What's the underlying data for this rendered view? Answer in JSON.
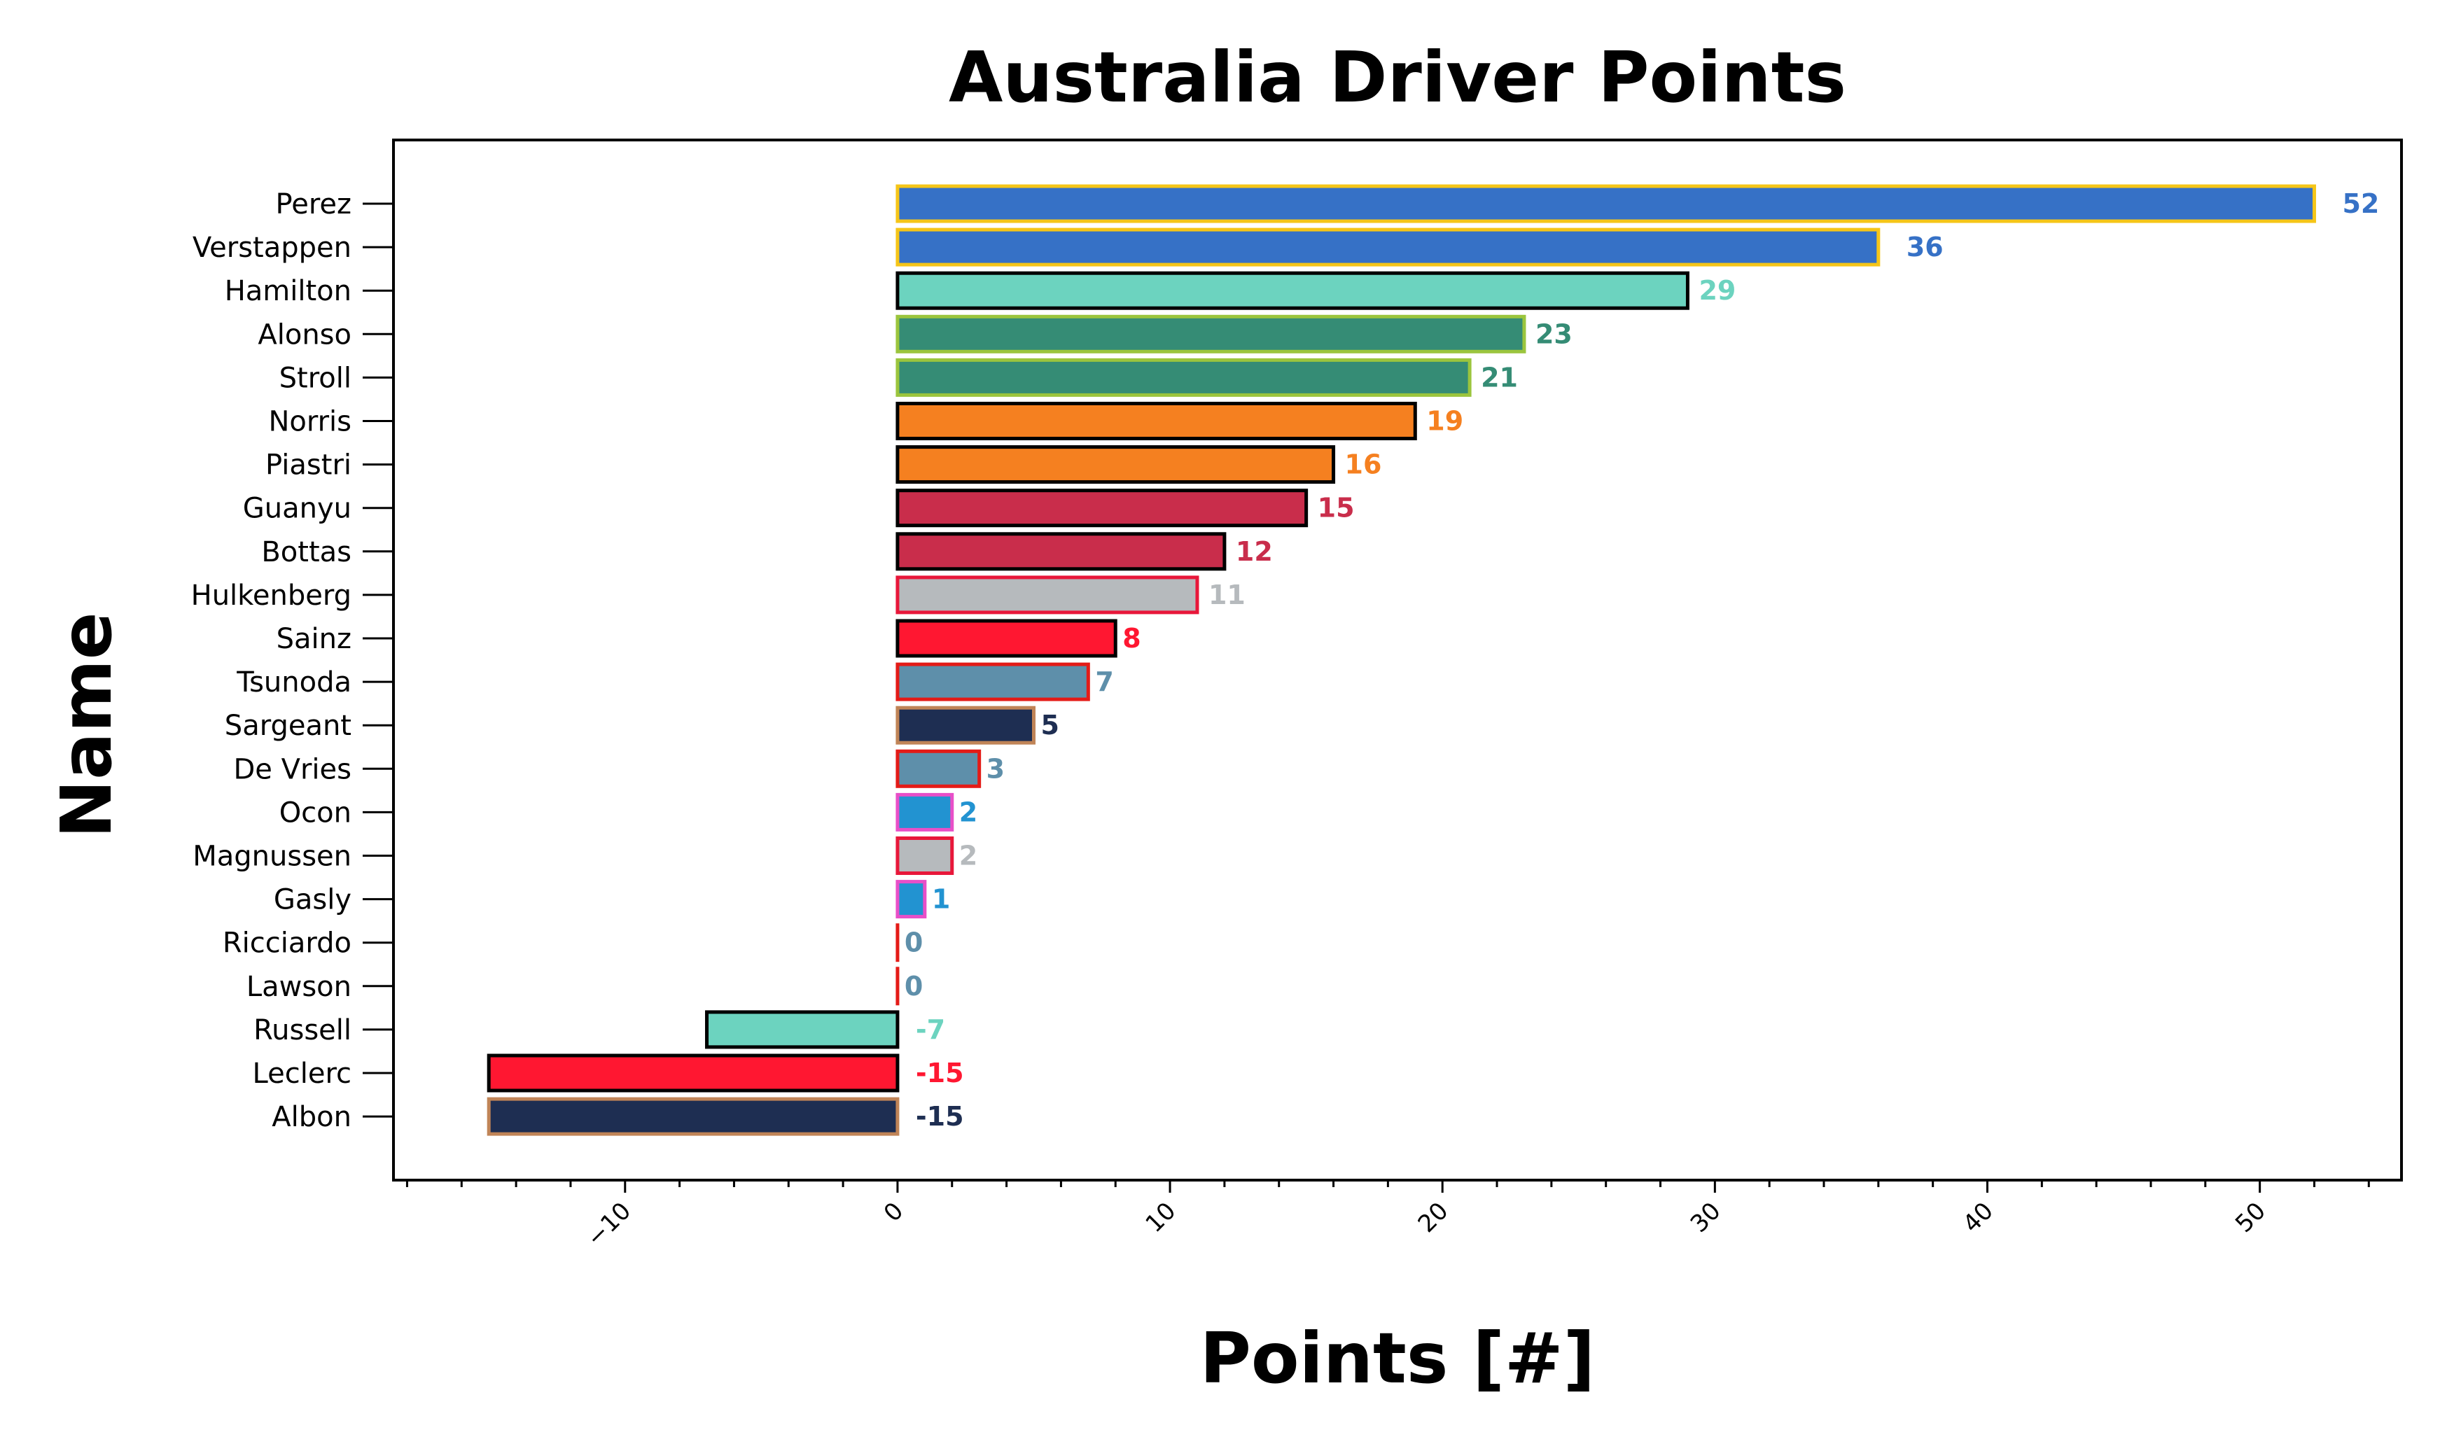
{
  "chart_data": {
    "type": "bar",
    "orientation": "horizontal",
    "title": "Australia Driver Points",
    "xlabel": "Points [#]",
    "ylabel": "Name",
    "xlim": [
      -18.5,
      55.2
    ],
    "xticks": [
      -10,
      0,
      10,
      20,
      30,
      40,
      50
    ],
    "xtick_labels": [
      "−10",
      "0",
      "10",
      "20",
      "30",
      "40",
      "50"
    ],
    "grid": false,
    "bars": [
      {
        "name": "Perez",
        "value": 52,
        "label": "52",
        "fill": "#3671C6",
        "edge": "#F5C518"
      },
      {
        "name": "Verstappen",
        "value": 36,
        "label": "36",
        "fill": "#3671C6",
        "edge": "#F5C518"
      },
      {
        "name": "Hamilton",
        "value": 29,
        "label": "29",
        "fill": "#6CD3BF",
        "edge": "#000000"
      },
      {
        "name": "Alonso",
        "value": 23,
        "label": "23",
        "fill": "#358C75",
        "edge": "#9BC53D"
      },
      {
        "name": "Stroll",
        "value": 21,
        "label": "21",
        "fill": "#358C75",
        "edge": "#9BC53D"
      },
      {
        "name": "Norris",
        "value": 19,
        "label": "19",
        "fill": "#F58020",
        "edge": "#000000"
      },
      {
        "name": "Piastri",
        "value": 16,
        "label": "16",
        "fill": "#F58020",
        "edge": "#000000"
      },
      {
        "name": "Guanyu",
        "value": 15,
        "label": "15",
        "fill": "#C92D4B",
        "edge": "#000000"
      },
      {
        "name": "Bottas",
        "value": 12,
        "label": "12",
        "fill": "#C92D4B",
        "edge": "#000000"
      },
      {
        "name": "Hulkenberg",
        "value": 11,
        "label": "11",
        "fill": "#B6BABD",
        "edge": "#E8173A"
      },
      {
        "name": "Sainz",
        "value": 8,
        "label": "8",
        "fill": "#FF1731",
        "edge": "#000000"
      },
      {
        "name": "Tsunoda",
        "value": 7,
        "label": "7",
        "fill": "#5E8FAA",
        "edge": "#E41B17"
      },
      {
        "name": "Sargeant",
        "value": 5,
        "label": "5",
        "fill": "#1E2E52",
        "edge": "#C08457"
      },
      {
        "name": "De Vries",
        "value": 3,
        "label": "3",
        "fill": "#5E8FAA",
        "edge": "#E41B17"
      },
      {
        "name": "Ocon",
        "value": 2,
        "label": "2",
        "fill": "#2293D1",
        "edge": "#E84FC8"
      },
      {
        "name": "Magnussen",
        "value": 2,
        "label": "2",
        "fill": "#B6BABD",
        "edge": "#E8173A"
      },
      {
        "name": "Gasly",
        "value": 1,
        "label": "1",
        "fill": "#2293D1",
        "edge": "#E84FC8"
      },
      {
        "name": "Ricciardo",
        "value": 0,
        "label": "0",
        "fill": "#5E8FAA",
        "edge": "#E41B17"
      },
      {
        "name": "Lawson",
        "value": 0,
        "label": "0",
        "fill": "#5E8FAA",
        "edge": "#E41B17"
      },
      {
        "name": "Russell",
        "value": -7,
        "label": "-7",
        "fill": "#6CD3BF",
        "edge": "#000000"
      },
      {
        "name": "Leclerc",
        "value": -15,
        "label": "-15",
        "fill": "#FF1731",
        "edge": "#000000"
      },
      {
        "name": "Albon",
        "value": -15,
        "label": "-15",
        "fill": "#1E2E52",
        "edge": "#C08457"
      }
    ]
  }
}
